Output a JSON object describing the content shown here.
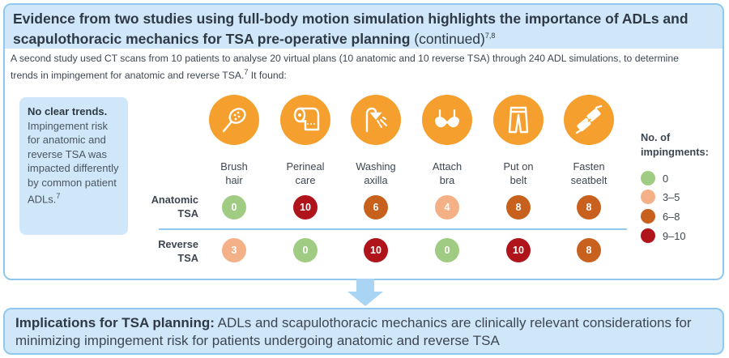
{
  "header": {
    "title": "Evidence from two studies using full-body motion simulation highlights the importance of ADLs and scapulothoracic mechanics for TSA pre-operative planning",
    "continued": "(continued)",
    "refs": "7,8"
  },
  "intro": {
    "text": "A second study used CT scans from 10 patients to analyse 20 virtual plans (10 anatomic and 10 reverse TSA) through 240 ADL simulations, to determine trends in impingement for anatomic and reverse TSA.",
    "ref": "7",
    "tail": " It found:"
  },
  "sidebox": {
    "lead": "No clear trends.",
    "body": "Impingement risk for anatomic and reverse TSA was impacted differently by common patient ADLs.",
    "ref": "7"
  },
  "activities": [
    {
      "line1": "Brush",
      "line2": "hair",
      "icon": "brush-icon"
    },
    {
      "line1": "Perineal",
      "line2": "care",
      "icon": "toilet-paper-icon"
    },
    {
      "line1": "Washing",
      "line2": "axilla",
      "icon": "shower-icon"
    },
    {
      "line1": "Attach",
      "line2": "bra",
      "icon": "bra-icon"
    },
    {
      "line1": "Put on",
      "line2": "belt",
      "icon": "trousers-icon"
    },
    {
      "line1": "Fasten",
      "line2": "seatbelt",
      "icon": "seatbelt-icon"
    }
  ],
  "rows": [
    {
      "label1": "Anatomic",
      "label2": "TSA",
      "values": [
        "0",
        "10",
        "6",
        "4",
        "8",
        "8"
      ],
      "categories": [
        "0",
        "9-10",
        "6-8",
        "3-5",
        "6-8",
        "6-8"
      ]
    },
    {
      "label1": "Reverse",
      "label2": "TSA",
      "values": [
        "3",
        "0",
        "10",
        "0",
        "10",
        "8"
      ],
      "categories": [
        "3-5",
        "0",
        "9-10",
        "0",
        "9-10",
        "6-8"
      ]
    }
  ],
  "legend": {
    "title1": "No. of",
    "title2": "impingments:",
    "items": [
      {
        "label": "0",
        "color": "#9fcc82"
      },
      {
        "label": "3–5",
        "color": "#f4b086"
      },
      {
        "label": "6–8",
        "color": "#c8601e"
      },
      {
        "label": "9–10",
        "color": "#b0141b"
      }
    ]
  },
  "colors": {
    "0": "#9fcc82",
    "3-5": "#f4b086",
    "6-8": "#c8601e",
    "9-10": "#b0141b",
    "icon_bg": "#f5a02e",
    "panel_bg": "#cfe7f9",
    "border": "#8fc8ef"
  },
  "implications": {
    "lead": "Implications for TSA planning:",
    "text": " ADLs and scapulothoracic mechanics are clinically relevant considerations for minimizing impingement risk for patients undergoing anatomic and reverse TSA"
  }
}
